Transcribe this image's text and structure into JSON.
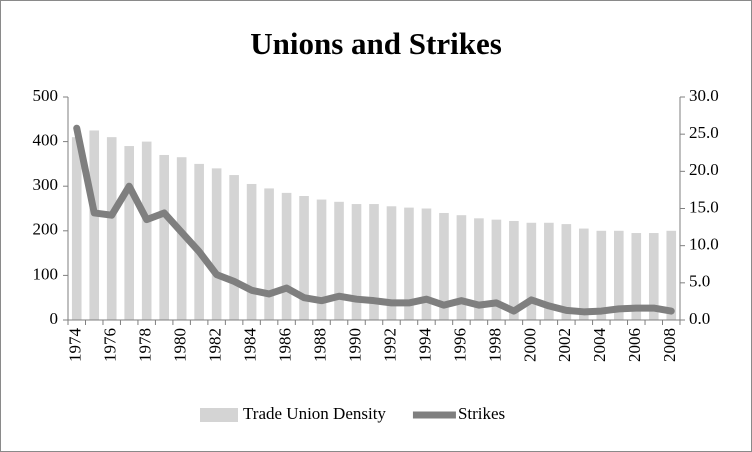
{
  "chart_data": {
    "type": "bar-line",
    "title": "Unions and Strikes",
    "categories": [
      "1974",
      null,
      "1976",
      null,
      "1978",
      null,
      "1980",
      null,
      "1982",
      null,
      "1984",
      null,
      "1986",
      null,
      "1988",
      null,
      "1990",
      null,
      "1992",
      null,
      "1994",
      null,
      "1996",
      null,
      "1998",
      null,
      "2000",
      null,
      "2002",
      null,
      "2004",
      null,
      "2006",
      null,
      "2008"
    ],
    "series": [
      {
        "name": "Trade Union Density",
        "type": "bar",
        "color": "#d4d4d4",
        "values": [
          410,
          425,
          410,
          390,
          400,
          370,
          365,
          350,
          340,
          325,
          305,
          295,
          285,
          278,
          270,
          265,
          260,
          260,
          255,
          252,
          250,
          240,
          235,
          228,
          225,
          222,
          218,
          218,
          215,
          205,
          200,
          200,
          195,
          195,
          200
        ]
      },
      {
        "name": "Strikes",
        "type": "line",
        "axis": "y2",
        "color": "#7f7f7f",
        "values": [
          25.8,
          14.4,
          14.1,
          18.0,
          13.5,
          14.4,
          11.8,
          9.2,
          6.1,
          5.2,
          4.0,
          3.5,
          4.3,
          3.0,
          2.6,
          3.2,
          2.8,
          2.6,
          2.3,
          2.3,
          2.8,
          2.0,
          2.6,
          2.0,
          2.3,
          1.2,
          2.7,
          1.9,
          1.3,
          1.1,
          1.2,
          1.5,
          1.6,
          1.6,
          1.2
        ]
      }
    ],
    "ylim": [
      0,
      500
    ],
    "yticks": [
      0,
      100,
      200,
      300,
      400,
      500
    ],
    "y2lim": [
      0,
      30
    ],
    "y2ticks": [
      {
        "value": 0,
        "label": "0.0"
      },
      {
        "value": 5,
        "label": "5.0"
      },
      {
        "value": 10,
        "label": "10.0"
      },
      {
        "value": 15,
        "label": "15.0"
      },
      {
        "value": 20,
        "label": "20.0"
      },
      {
        "value": 25,
        "label": "25.0"
      },
      {
        "value": 30,
        "label": "30.0"
      }
    ],
    "grid": false,
    "legend": "bottom"
  }
}
